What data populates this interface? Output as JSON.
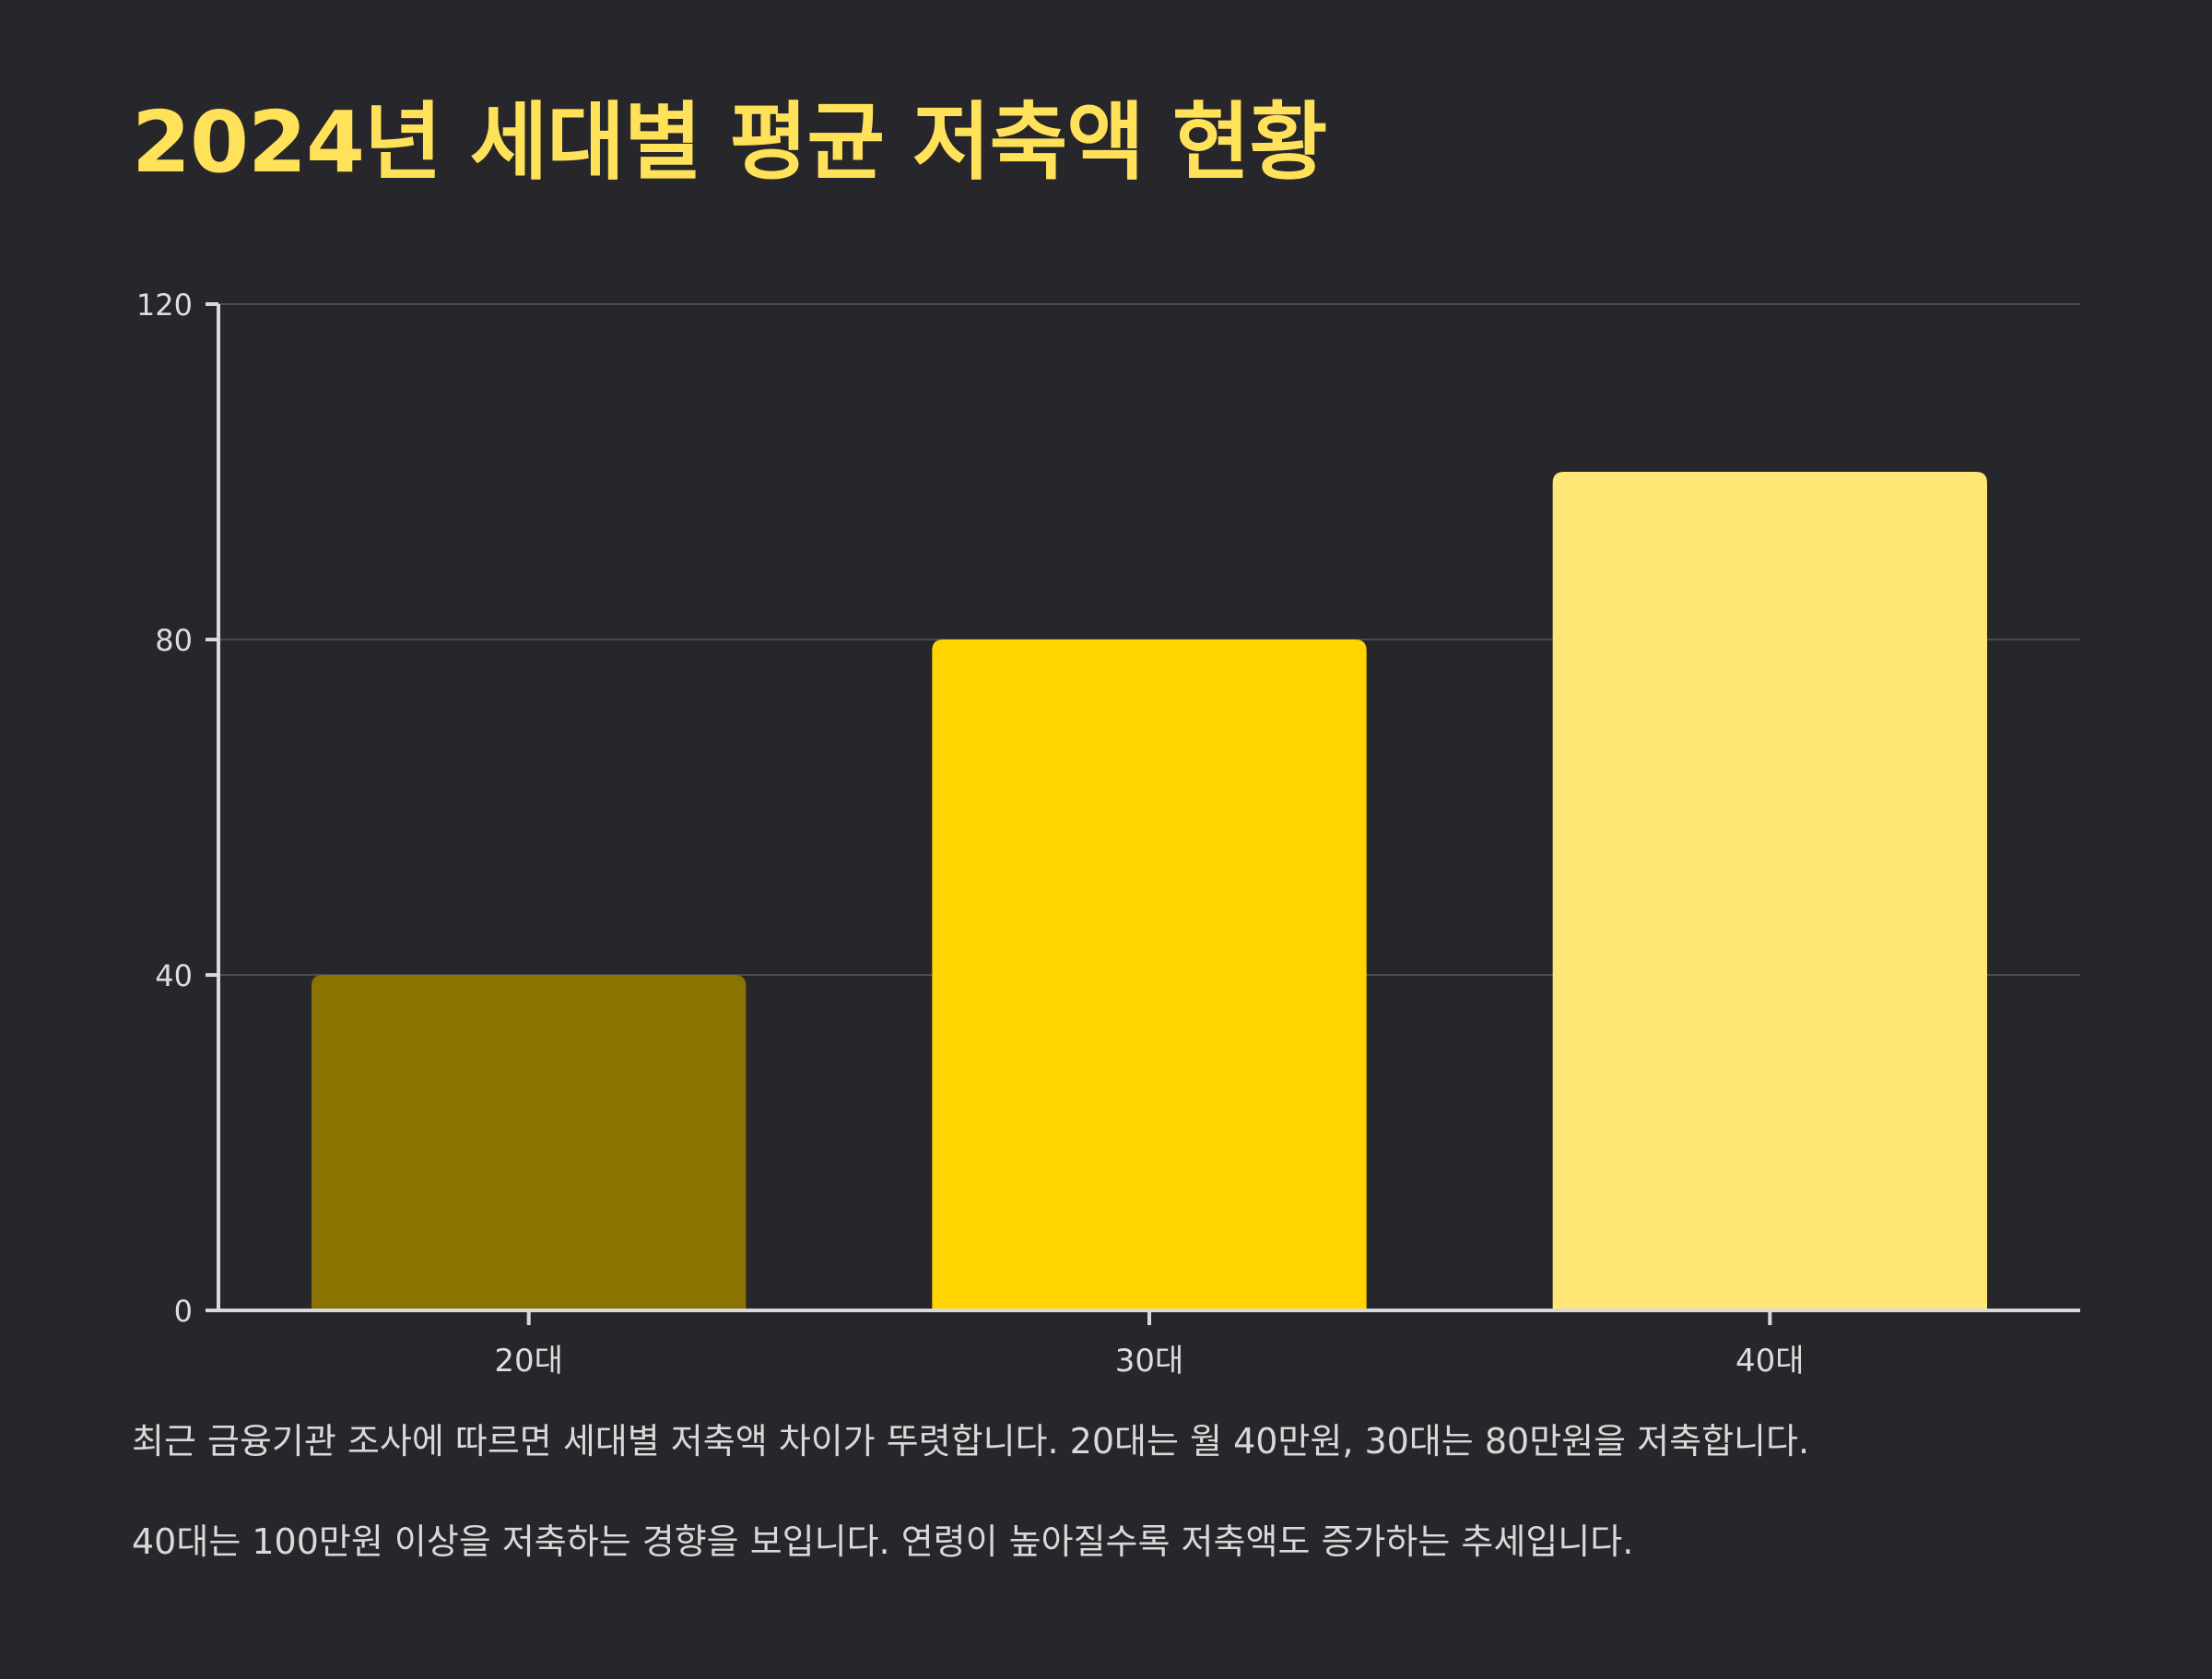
{
  "title": "2024년 세대별 평균 저축액 현황",
  "description": [
    "최근 금융기관 조사에 따르면 세대별 저축액 차이가 뚜렷합니다. 20대는 월 40만원, 30대는 80만원을 저축합니다.",
    "40대는 100만원 이상을 저축하는 경향을 보입니다. 연령이 높아질수록 저축액도 증가하는 추세입니다."
  ],
  "colors": {
    "background": "#27272b",
    "title": "#ffe15a",
    "gridline": "#4a4a4f",
    "axis": "#d9d9d9",
    "tick_label": "#dddddd"
  },
  "chart_data": {
    "type": "bar",
    "title": "2024년 세대별 평균 저축액 현황",
    "xlabel": "",
    "ylabel": "",
    "categories": [
      "20대",
      "30대",
      "40대"
    ],
    "values": [
      40,
      80,
      100
    ],
    "bar_colors": [
      "#8a7300",
      "#ffd400",
      "#ffe675"
    ],
    "ylim": [
      0,
      120
    ],
    "yticks": [
      0,
      40,
      80,
      120
    ],
    "grid": true,
    "legend": "none"
  }
}
